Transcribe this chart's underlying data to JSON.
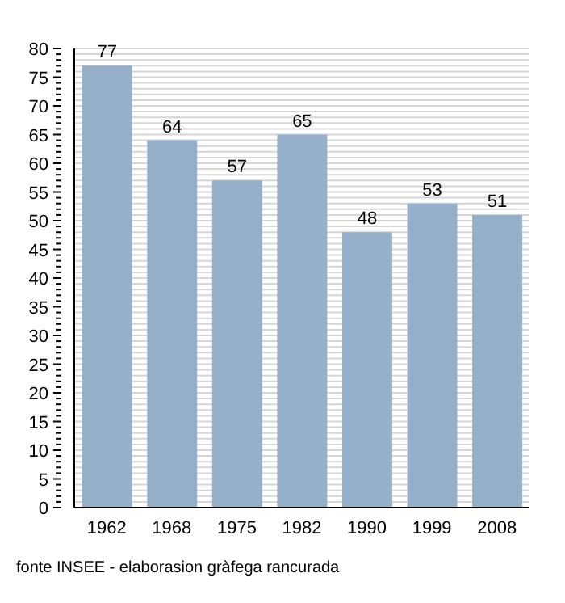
{
  "chart_data": {
    "type": "bar",
    "categories": [
      "1962",
      "1968",
      "1975",
      "1982",
      "1990",
      "1999",
      "2008"
    ],
    "values": [
      77,
      64,
      57,
      65,
      48,
      53,
      51
    ],
    "color": "#97b0ca",
    "data_labels": true,
    "ylim": [
      0,
      80
    ],
    "yticks": [
      0,
      {
        "value": 1,
        "label": null
      },
      {
        "value": 2,
        "label": null
      },
      {
        "value": 3,
        "label": null
      },
      {
        "value": 4,
        "label": null
      },
      5,
      {
        "value": 6,
        "label": null
      },
      {
        "value": 7,
        "label": null
      },
      {
        "value": 8,
        "label": null
      },
      {
        "value": 9,
        "label": null
      },
      10,
      {
        "value": 11,
        "label": null
      },
      {
        "value": 12,
        "label": null
      },
      {
        "value": 13,
        "label": null
      },
      {
        "value": 14,
        "label": null
      },
      15,
      {
        "value": 16,
        "label": null
      },
      {
        "value": 17,
        "label": null
      },
      {
        "value": 18,
        "label": null
      },
      {
        "value": 19,
        "label": null
      },
      20,
      {
        "value": 21,
        "label": null
      },
      {
        "value": 22,
        "label": null
      },
      {
        "value": 23,
        "label": null
      },
      {
        "value": 24,
        "label": null
      },
      25,
      {
        "value": 26,
        "label": null
      },
      {
        "value": 27,
        "label": null
      },
      {
        "value": 28,
        "label": null
      },
      {
        "value": 29,
        "label": null
      },
      30,
      {
        "value": 31,
        "label": null
      },
      {
        "value": 32,
        "label": null
      },
      {
        "value": 33,
        "label": null
      },
      {
        "value": 34,
        "label": null
      },
      35,
      {
        "value": 36,
        "label": null
      },
      {
        "value": 37,
        "label": null
      },
      {
        "value": 38,
        "label": null
      },
      {
        "value": 39,
        "label": null
      },
      40,
      {
        "value": 41,
        "label": null
      },
      {
        "value": 42,
        "label": null
      },
      {
        "value": 43,
        "label": null
      },
      {
        "value": 44,
        "label": null
      },
      45,
      {
        "value": 46,
        "label": null
      },
      {
        "value": 47,
        "label": null
      },
      {
        "value": 48,
        "label": null
      },
      {
        "value": 49,
        "label": null
      },
      50,
      {
        "value": 51,
        "label": null
      },
      {
        "value": 52,
        "label": null
      },
      {
        "value": 53,
        "label": null
      },
      {
        "value": 54,
        "label": null
      },
      55,
      {
        "value": 56,
        "label": null
      },
      {
        "value": 57,
        "label": null
      },
      {
        "value": 58,
        "label": null
      },
      {
        "value": 59,
        "label": null
      },
      60,
      {
        "value": 61,
        "label": null
      },
      {
        "value": 62,
        "label": null
      },
      {
        "value": 63,
        "label": null
      },
      {
        "value": 64,
        "label": null
      },
      65,
      {
        "value": 66,
        "label": null
      },
      {
        "value": 67,
        "label": null
      },
      {
        "value": 68,
        "label": null
      },
      {
        "value": 69,
        "label": null
      },
      70,
      {
        "value": 71,
        "label": null
      },
      {
        "value": 72,
        "label": null
      },
      {
        "value": 73,
        "label": null
      },
      {
        "value": 74,
        "label": null
      },
      75,
      {
        "value": 76,
        "label": null
      },
      {
        "value": 77,
        "label": null
      },
      {
        "value": 78,
        "label": null
      },
      {
        "value": 79,
        "label": null
      },
      80
    ],
    "grid": "y",
    "annotations": [
      "fonte INSEE - elaborasion gràfega rancurada"
    ]
  }
}
